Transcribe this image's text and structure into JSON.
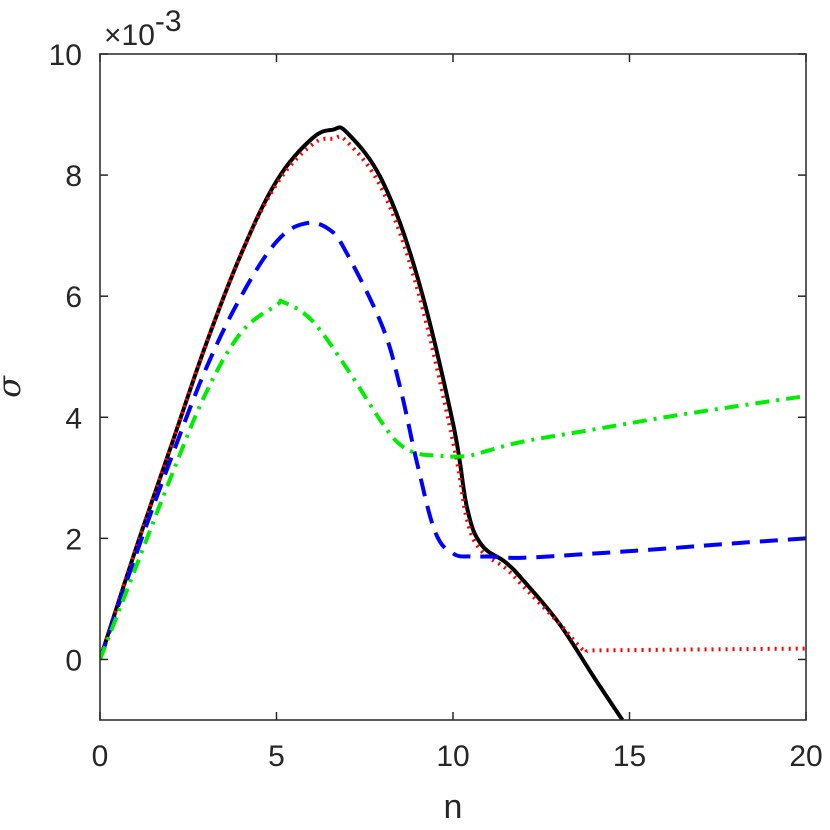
{
  "chart_data": {
    "type": "line",
    "xlabel": "n",
    "ylabel": "σ",
    "xlim": [
      0,
      20
    ],
    "ylim": [
      -1,
      10
    ],
    "xticks": [
      "0",
      "5",
      "10",
      "15",
      "20"
    ],
    "yticks": [
      "0",
      "2",
      "4",
      "6",
      "8",
      "10"
    ],
    "y_exponent": {
      "base": "×10",
      "power": "-3"
    },
    "grid": false,
    "series": [
      {
        "style": "solid",
        "color": "#000000",
        "x": [
          0,
          1,
          2,
          3,
          4,
          5,
          6,
          6.6,
          7,
          8,
          9,
          10,
          10.4,
          10.8,
          11.5,
          12,
          13,
          14,
          14.8
        ],
        "y": [
          0,
          1.8,
          3.5,
          5.2,
          6.7,
          7.9,
          8.6,
          8.75,
          8.7,
          7.9,
          6.3,
          3.9,
          2.5,
          1.9,
          1.6,
          1.3,
          0.6,
          -0.3,
          -1.0
        ]
      },
      {
        "style": "dotted",
        "color": "#ff0000",
        "x": [
          0,
          1,
          2,
          3,
          4,
          5,
          6,
          6.6,
          7,
          8,
          9,
          10,
          10.4,
          10.8,
          11.5,
          12,
          13,
          13.7,
          14,
          16,
          18,
          20
        ],
        "y": [
          0,
          1.8,
          3.5,
          5.2,
          6.7,
          7.85,
          8.5,
          8.6,
          8.55,
          7.75,
          6.1,
          3.6,
          2.3,
          1.8,
          1.5,
          1.2,
          0.6,
          0.15,
          0.15,
          0.16,
          0.17,
          0.18
        ]
      },
      {
        "style": "dashed",
        "color": "#0000ff",
        "x": [
          0,
          1,
          2,
          3,
          4,
          5,
          5.8,
          6.5,
          7,
          8,
          8.5,
          9,
          9.5,
          10,
          10.5,
          11,
          12,
          14,
          16,
          18,
          20
        ],
        "y": [
          0,
          1.7,
          3.3,
          4.8,
          6.0,
          6.9,
          7.2,
          7.1,
          6.7,
          5.5,
          4.5,
          3.2,
          2.1,
          1.75,
          1.7,
          1.7,
          1.68,
          1.75,
          1.83,
          1.92,
          2.0
        ]
      },
      {
        "style": "dashdot",
        "color": "#00ee00",
        "x": [
          0,
          1,
          2,
          3,
          4,
          5,
          5.2,
          6,
          7,
          8,
          8.5,
          9,
          9.5,
          10,
          10.5,
          11,
          12,
          14,
          16,
          18,
          20
        ],
        "y": [
          0,
          1.5,
          3.0,
          4.4,
          5.4,
          5.85,
          5.9,
          5.6,
          4.8,
          3.9,
          3.55,
          3.4,
          3.37,
          3.35,
          3.37,
          3.45,
          3.6,
          3.8,
          4.0,
          4.18,
          4.35
        ]
      }
    ]
  }
}
